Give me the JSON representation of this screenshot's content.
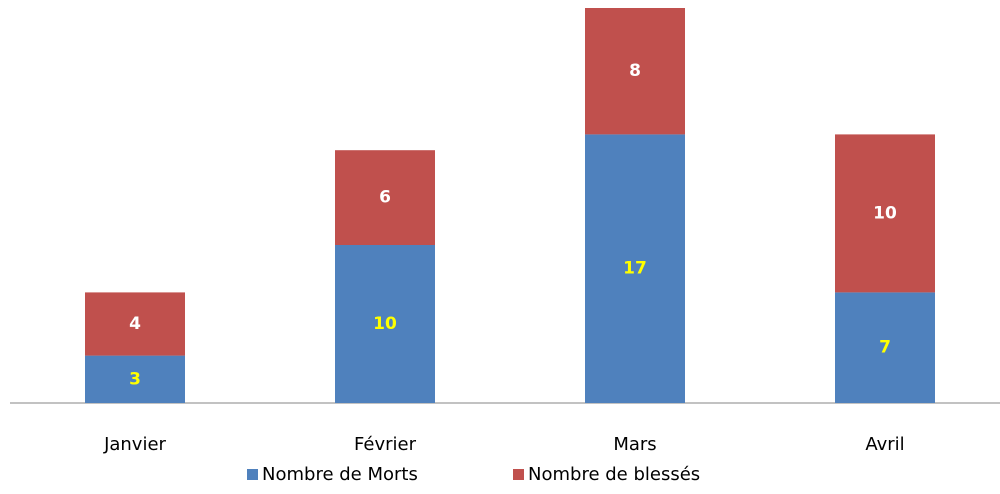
{
  "chart_data": {
    "type": "stacked_bar",
    "categories": [
      "Janvier",
      "Février",
      "Mars",
      "Avril"
    ],
    "series": [
      {
        "name": "Nombre de Morts",
        "color": "#4f81bd",
        "label_color": "#ffff00",
        "values": [
          3,
          10,
          17,
          7
        ]
      },
      {
        "name": "Nombre de blessés",
        "color": "#c0504d",
        "label_color": "#ffffff",
        "values": [
          4,
          6,
          8,
          10
        ]
      }
    ],
    "legend": "bottom"
  }
}
